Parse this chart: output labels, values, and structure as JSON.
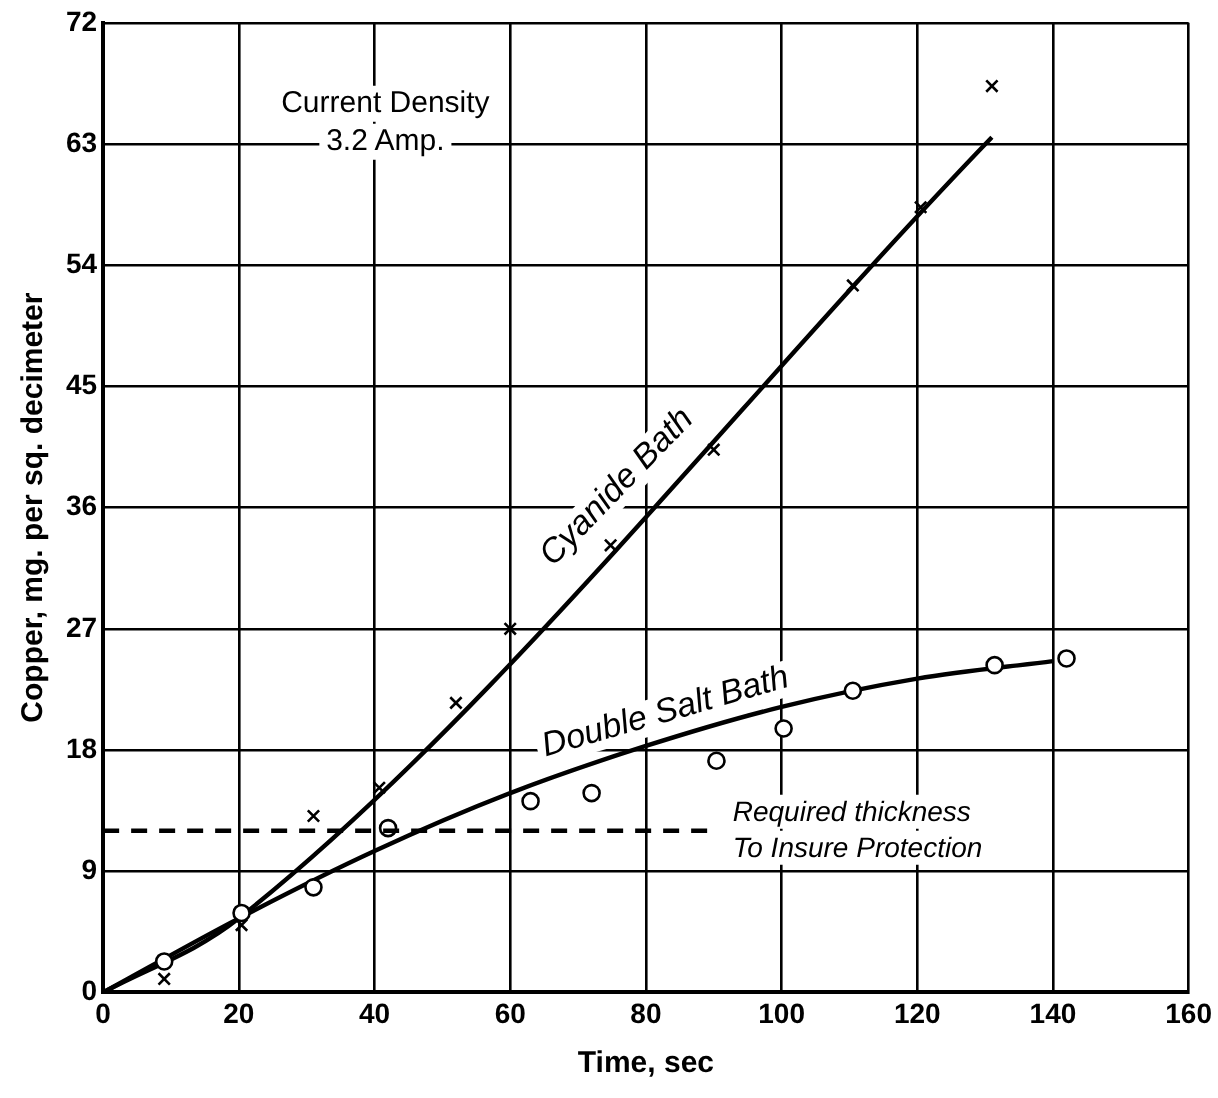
{
  "chart_data": {
    "type": "scatter",
    "xlabel": "Time, sec",
    "ylabel": "Copper, mg. per sq. decimeter",
    "series": [
      {
        "type": "scatter",
        "marker": "cross",
        "color": "#000000",
        "x": [
          9,
          20.4,
          31,
          40.7,
          52,
          60,
          74.8,
          90,
          110.5,
          120.5,
          131
        ],
        "values": [
          1,
          5,
          13.1,
          15.2,
          21.5,
          27,
          33.2,
          40.3,
          52.5,
          58.3,
          67.3
        ]
      },
      {
        "type": "scatter",
        "marker": "circle",
        "color": "#000000",
        "x": [
          9,
          20.4,
          31,
          42,
          63,
          72,
          90.4,
          100.3,
          110.5,
          131.4,
          142
        ],
        "values": [
          2.3,
          5.9,
          7.8,
          12.2,
          14.2,
          14.8,
          17.2,
          19.6,
          22.4,
          24.3,
          24.8
        ]
      },
      {
        "type": "line",
        "name": "Cyanide Bath",
        "marker": "none",
        "color": "#000000",
        "x": [
          0,
          20,
          131
        ],
        "values": [
          0,
          5.5,
          63.5
        ]
      },
      {
        "type": "line",
        "name": "Double Salt Bath",
        "marker": "none",
        "color": "#000000",
        "x": [
          0,
          20,
          40,
          60,
          80,
          100,
          120,
          140
        ],
        "values": [
          0,
          5.5,
          10.5,
          14.8,
          18.3,
          21.2,
          23.3,
          24.6
        ]
      }
    ],
    "ref_lines": [
      {
        "axis": "y",
        "value": 12,
        "label": "Required thickness\nTo Insure Protection",
        "line_style": "dashed",
        "color": "#000000"
      }
    ],
    "annotations": [
      "Current Density\n3.2 Amp."
    ],
    "xlim": [
      0,
      160
    ],
    "xticks": [
      0,
      20,
      40,
      60,
      80,
      100,
      120,
      140,
      160
    ],
    "ylim": [
      0,
      72
    ],
    "yticks": [
      0,
      9,
      18,
      27,
      36,
      45,
      54,
      63,
      72
    ],
    "grid": true,
    "legend": false
  }
}
